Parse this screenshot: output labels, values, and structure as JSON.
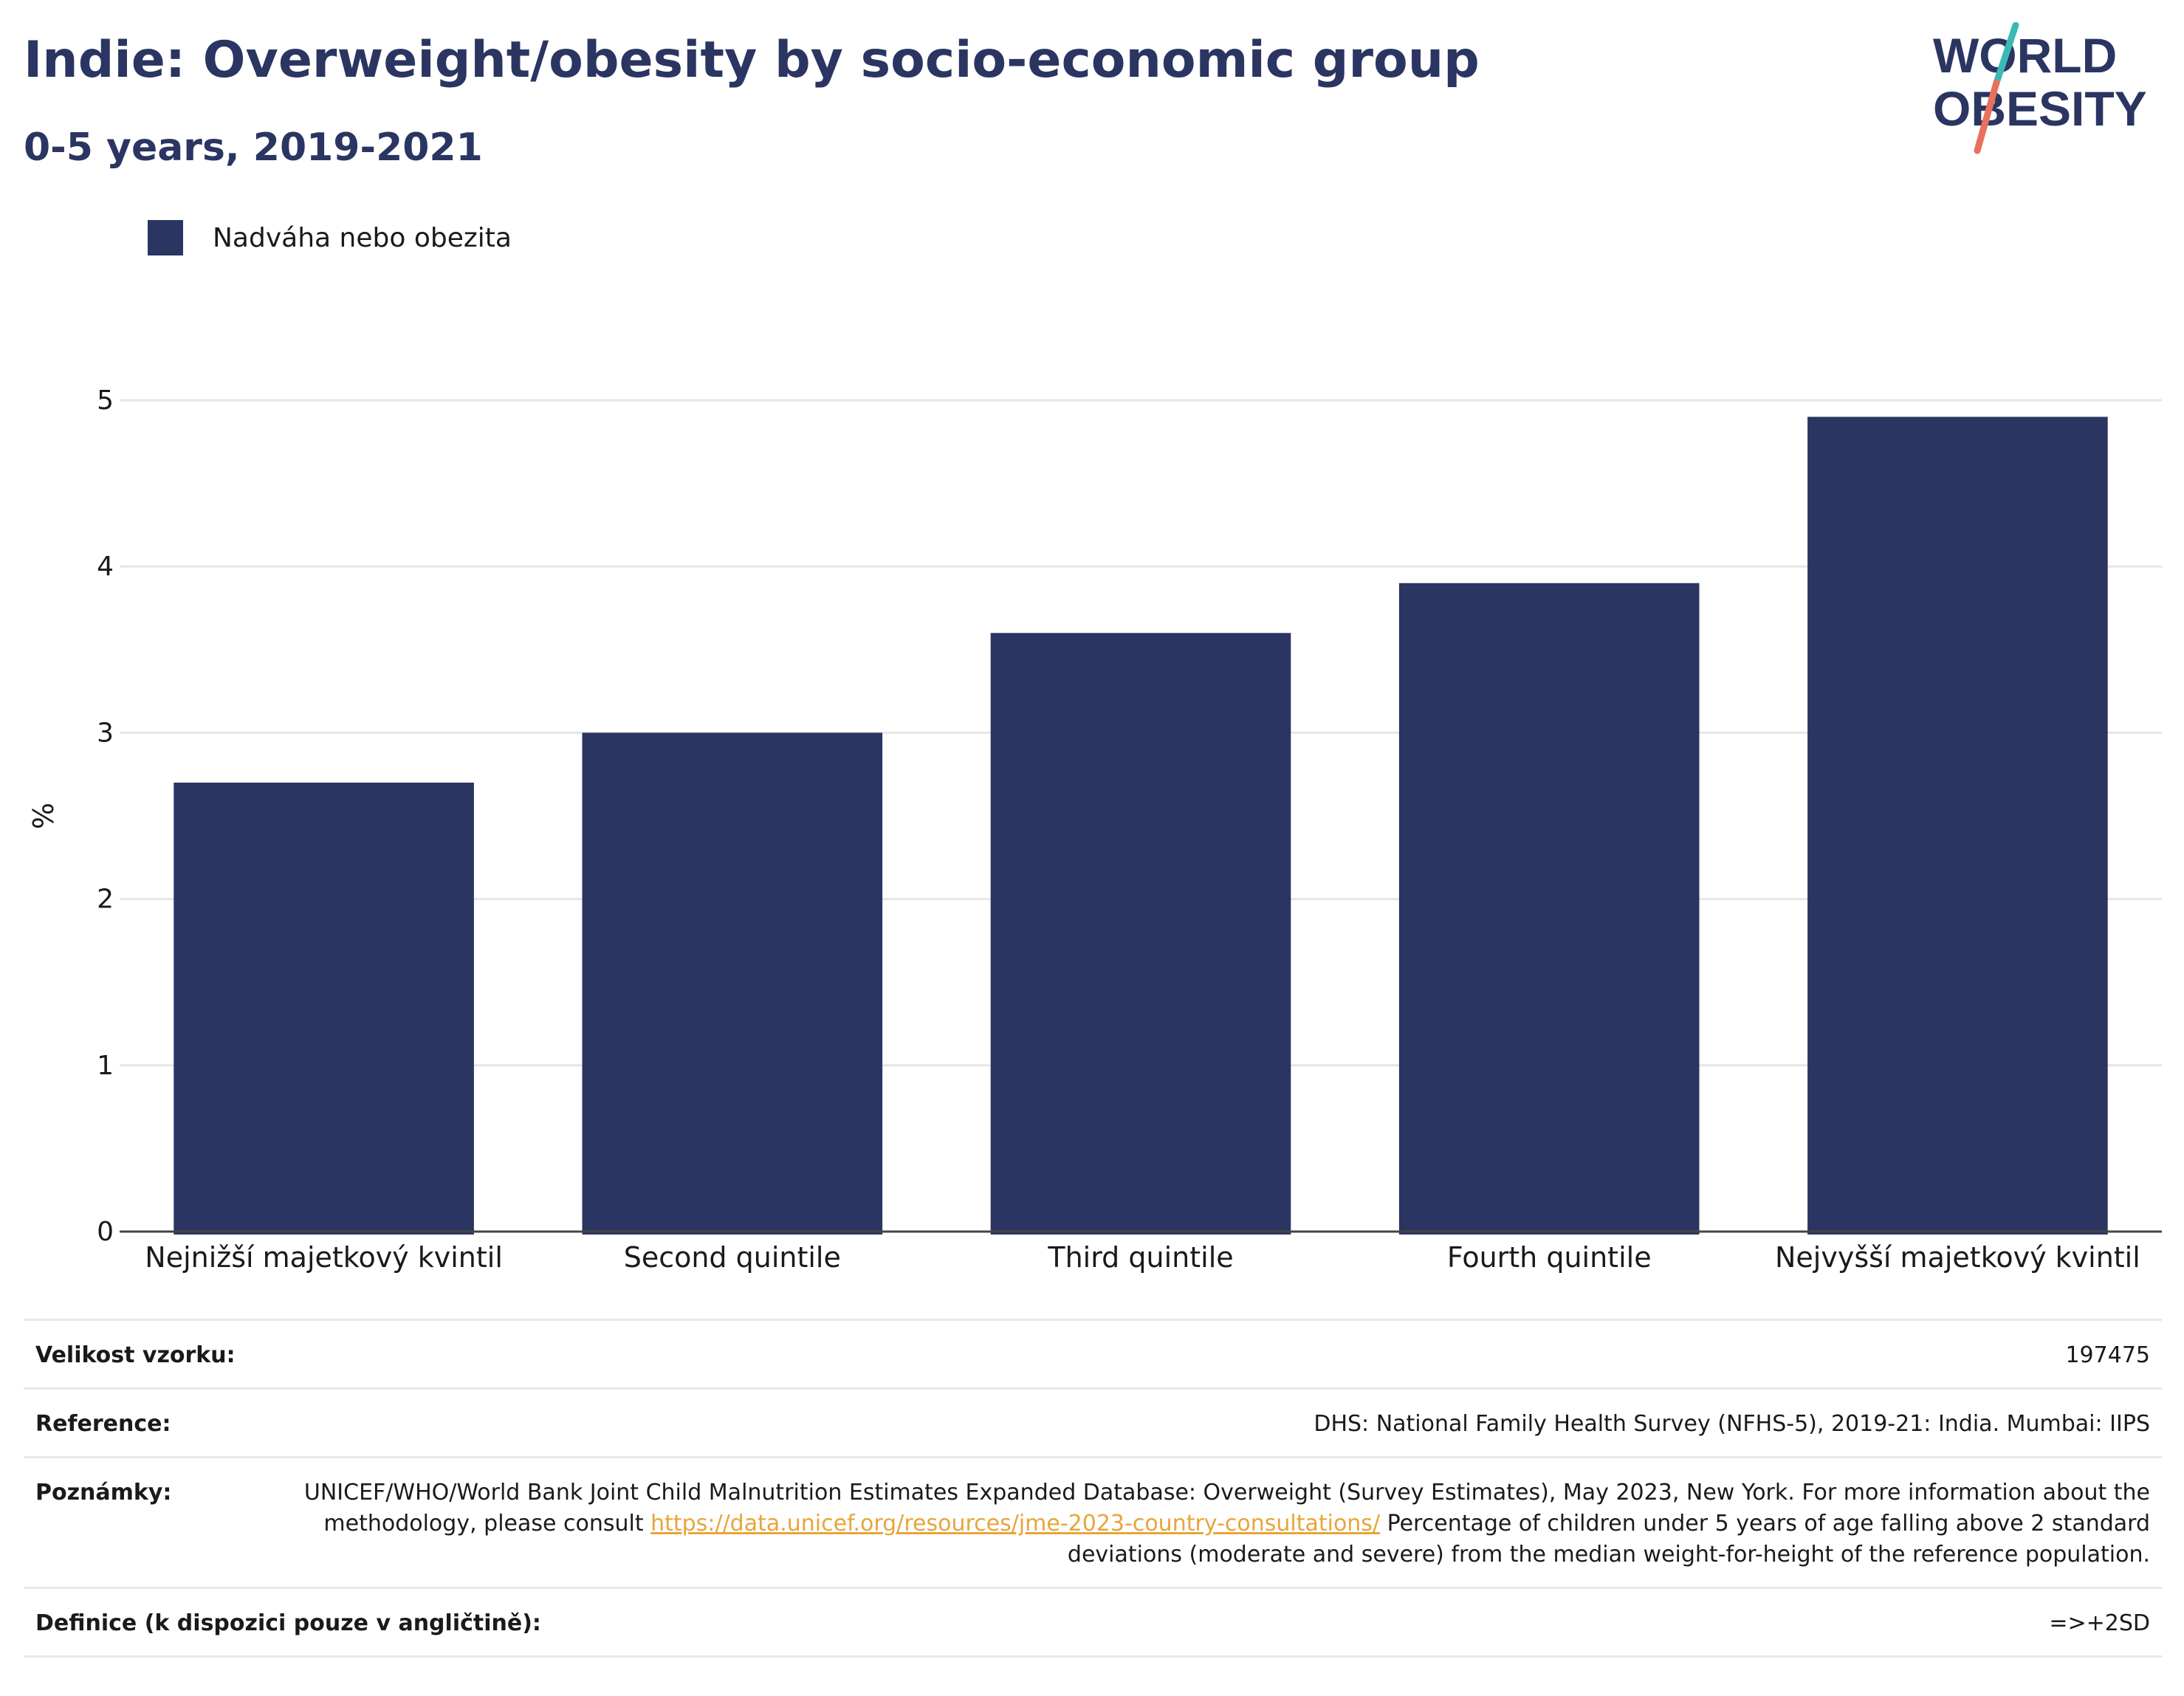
{
  "header": {
    "title": "Indie: Overweight/obesity by socio-economic group",
    "subtitle": "0-5 years, 2019-2021"
  },
  "logo": {
    "line1": "WORLD",
    "line2": "OBESITY"
  },
  "legend": {
    "label": "Nadváha nebo obezita",
    "color": "#2b3562"
  },
  "chart_data": {
    "type": "bar",
    "categories": [
      "Nejnižší majetkový kvintil",
      "Second quintile",
      "Third quintile",
      "Fourth quintile",
      "Nejvyšší majetkový kvintil"
    ],
    "series": [
      {
        "name": "Nadváha nebo obezita",
        "values": [
          2.7,
          3.0,
          3.6,
          3.9,
          4.9
        ]
      }
    ],
    "xlabel": "",
    "ylabel": "%",
    "ylim": [
      0,
      5
    ],
    "yticks": [
      0,
      1,
      2,
      3,
      4,
      5
    ],
    "grid": true,
    "bar_color": "#2b3562"
  },
  "metadata": {
    "sample_size": {
      "key": "Velikost vzorku:",
      "value": "197475"
    },
    "reference": {
      "key": "Reference:",
      "value": "DHS: National Family Health Survey (NFHS-5), 2019-21: India. Mumbai: IIPS"
    },
    "notes": {
      "key": "Poznámky:",
      "text1": "UNICEF/WHO/World Bank Joint Child Malnutrition Estimates Expanded Database: Overweight (Survey Estimates), May 2023, New York. For more information about the methodology, please consult ",
      "link": "https://data.unicef.org/resources/jme-2023-country-consultations/",
      "text2": " Percentage of children under 5 years of age falling above 2 standard deviations (moderate and severe) from the median weight-for-height of the reference population."
    },
    "definition": {
      "key": "Definice (k dispozici pouze v angličtině):",
      "value": "=>+2SD"
    }
  }
}
